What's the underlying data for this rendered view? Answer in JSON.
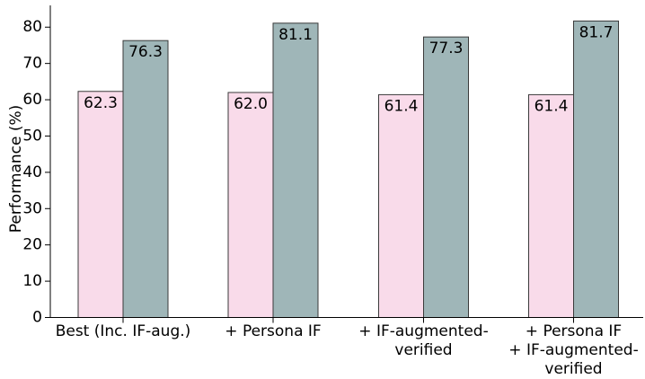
{
  "chart_data": {
    "type": "bar",
    "title": "",
    "xlabel": "",
    "ylabel": "Performance (%)",
    "ylim": [
      0,
      86
    ],
    "yticks": [
      0,
      10,
      20,
      30,
      40,
      50,
      60,
      70,
      80
    ],
    "grid": false,
    "legend": "none",
    "categories": [
      [
        "Best (Inc. IF-aug.)"
      ],
      [
        "+ Persona IF"
      ],
      [
        "+ IF-augmented-",
        "verified"
      ],
      [
        "+ Persona IF",
        "+ IF-augmented-",
        "verified"
      ]
    ],
    "series": [
      {
        "values": [
          62.3,
          62.0,
          61.4,
          61.4
        ],
        "color": "#f9dbea"
      },
      {
        "values": [
          76.3,
          81.1,
          77.3,
          81.7
        ],
        "color": "#9fb6b8"
      }
    ],
    "data_labels": [
      [
        "62.3",
        "62.0",
        "61.4",
        "61.4"
      ],
      [
        "76.3",
        "81.1",
        "77.3",
        "81.7"
      ]
    ]
  }
}
